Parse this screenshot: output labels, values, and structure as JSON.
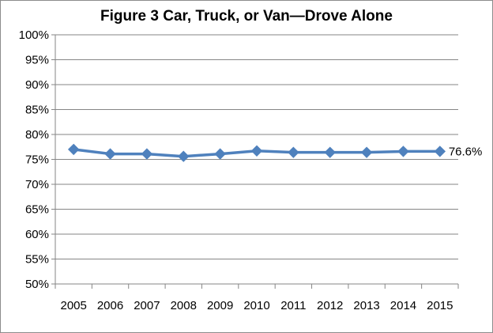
{
  "chart_data": {
    "type": "line",
    "title": "Figure 3  Car, Truck, or Van—Drove Alone",
    "xlabel": "",
    "ylabel": "",
    "ylim": [
      50,
      100
    ],
    "y_ticks": [
      50,
      55,
      60,
      65,
      70,
      75,
      80,
      85,
      90,
      95,
      100
    ],
    "y_tick_labels": [
      "50%",
      "55%",
      "60%",
      "65%",
      "70%",
      "75%",
      "80%",
      "85%",
      "90%",
      "95%",
      "100%"
    ],
    "categories": [
      "2005",
      "2006",
      "2007",
      "2008",
      "2009",
      "2010",
      "2011",
      "2012",
      "2013",
      "2014",
      "2015"
    ],
    "series": [
      {
        "values": [
          77.0,
          76.1,
          76.1,
          75.6,
          76.1,
          76.7,
          76.4,
          76.4,
          76.4,
          76.6,
          76.6
        ]
      }
    ],
    "annotation": "76.6%",
    "grid": true,
    "legend": "none",
    "line_color": "#4f81bd"
  }
}
